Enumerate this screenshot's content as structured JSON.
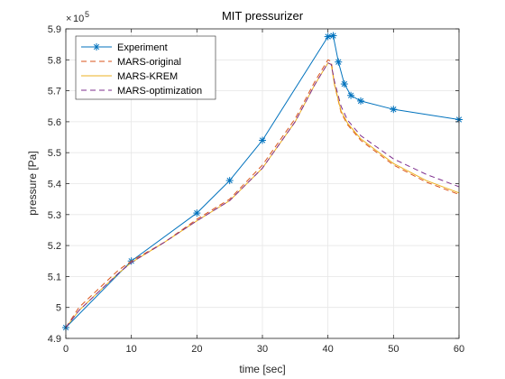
{
  "chart_data": {
    "type": "line",
    "title": "MIT pressurizer",
    "xlabel": "time [sec]",
    "ylabel": "pressure [Pa]",
    "y_exponent_label": "10",
    "y_exponent_power": "5",
    "xlim": [
      0,
      60
    ],
    "ylim": [
      4.9,
      5.9
    ],
    "x_ticks": [
      0,
      10,
      20,
      30,
      40,
      50,
      60
    ],
    "x_tick_labels": [
      "0",
      "10",
      "20",
      "30",
      "40",
      "50",
      "60"
    ],
    "y_ticks": [
      4.9,
      5.0,
      5.1,
      5.2,
      5.3,
      5.4,
      5.5,
      5.6,
      5.7,
      5.8,
      5.9
    ],
    "y_tick_labels": [
      "4.9",
      "5",
      "5.1",
      "5.2",
      "5.3",
      "5.4",
      "5.5",
      "5.6",
      "5.7",
      "5.8",
      "5.9"
    ],
    "grid": true,
    "legend_position": "top-left",
    "series": [
      {
        "name": "Experiment",
        "color": "#0072BD",
        "dash": "solid",
        "marker": "asterisk",
        "x": [
          0,
          10,
          20,
          25,
          30,
          40,
          40.8,
          41.6,
          42.5,
          43.5,
          45,
          50,
          60
        ],
        "y": [
          4.935,
          5.15,
          5.305,
          5.41,
          5.54,
          5.875,
          5.878,
          5.793,
          5.722,
          5.685,
          5.667,
          5.64,
          5.607
        ]
      },
      {
        "name": "MARS-original",
        "color": "#D95319",
        "dash": "dashed",
        "marker": "none",
        "x": [
          0,
          2,
          5,
          8,
          10,
          15,
          20,
          25,
          30,
          35,
          38,
          40,
          40.5,
          41,
          42,
          43,
          45,
          50,
          55,
          60
        ],
        "y": [
          4.935,
          5.0,
          5.06,
          5.12,
          5.15,
          5.21,
          5.285,
          5.35,
          5.46,
          5.61,
          5.73,
          5.8,
          5.795,
          5.72,
          5.63,
          5.59,
          5.54,
          5.46,
          5.405,
          5.365
        ]
      },
      {
        "name": "MARS-KREM",
        "color": "#EDB120",
        "dash": "solid",
        "marker": "none",
        "x": [
          0,
          2,
          5,
          8,
          10,
          15,
          20,
          25,
          30,
          35,
          38,
          40,
          40.5,
          41,
          42,
          43,
          45,
          50,
          55,
          60
        ],
        "y": [
          4.935,
          4.99,
          5.05,
          5.11,
          5.145,
          5.21,
          5.28,
          5.345,
          5.45,
          5.6,
          5.72,
          5.79,
          5.785,
          5.72,
          5.635,
          5.595,
          5.545,
          5.465,
          5.41,
          5.37
        ]
      },
      {
        "name": "MARS-optimization",
        "color": "#7E2F8E",
        "dash": "dashed",
        "marker": "none",
        "x": [
          0,
          2,
          5,
          8,
          10,
          15,
          20,
          25,
          30,
          35,
          38,
          40,
          40.5,
          41,
          42,
          43,
          45,
          50,
          55,
          60
        ],
        "y": [
          4.935,
          4.99,
          5.05,
          5.11,
          5.145,
          5.21,
          5.28,
          5.345,
          5.45,
          5.6,
          5.72,
          5.79,
          5.785,
          5.73,
          5.65,
          5.605,
          5.555,
          5.48,
          5.43,
          5.39
        ]
      }
    ]
  }
}
